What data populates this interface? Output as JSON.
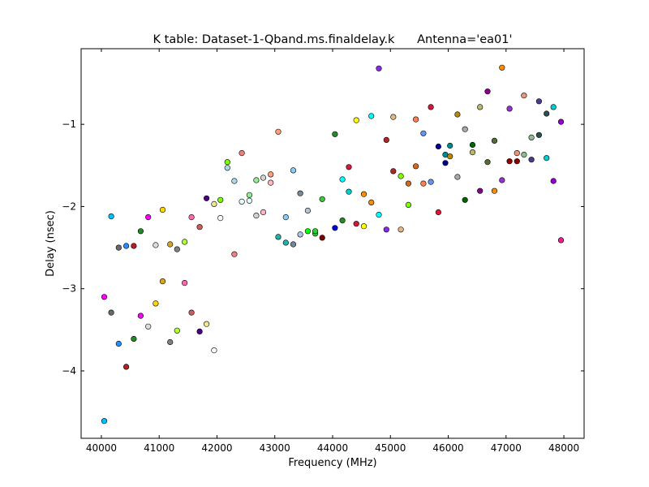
{
  "chart_data": {
    "type": "scatter",
    "title": "K table: Dataset-1-Qband.ms.finaldelay.k      Antenna='ea01'",
    "xlabel": "Frequency (MHz)",
    "ylabel": "Delay (nsec)",
    "xlim": [
      39650,
      48350
    ],
    "ylim": [
      -4.82,
      -0.08
    ],
    "x_ticks": [
      40000,
      41000,
      42000,
      43000,
      44000,
      45000,
      46000,
      47000,
      48000
    ],
    "y_ticks": [
      -4,
      -3,
      -2,
      -1
    ],
    "y_tick_labels": [
      "−4",
      "−3",
      "−2",
      "−1"
    ],
    "grid": false,
    "legend": "none",
    "marker": "circle",
    "points": [
      {
        "x": 40050,
        "y": -4.61,
        "color": "#00bfff"
      },
      {
        "x": 40050,
        "y": -3.1,
        "color": "#ff00ff"
      },
      {
        "x": 40170,
        "y": -2.12,
        "color": "#00bfff"
      },
      {
        "x": 40170,
        "y": -3.29,
        "color": "#696969"
      },
      {
        "x": 40300,
        "y": -2.5,
        "color": "#696969"
      },
      {
        "x": 40300,
        "y": -3.67,
        "color": "#1e90ff"
      },
      {
        "x": 40430,
        "y": -2.48,
        "color": "#1e90ff"
      },
      {
        "x": 40430,
        "y": -3.95,
        "color": "#b22222"
      },
      {
        "x": 40560,
        "y": -2.48,
        "color": "#b22222"
      },
      {
        "x": 40560,
        "y": -3.61,
        "color": "#228b22"
      },
      {
        "x": 40680,
        "y": -2.3,
        "color": "#228b22"
      },
      {
        "x": 40680,
        "y": -3.33,
        "color": "#ff00ff"
      },
      {
        "x": 40810,
        "y": -2.13,
        "color": "#ff00ff"
      },
      {
        "x": 40810,
        "y": -3.46,
        "color": "#dcdcdc"
      },
      {
        "x": 40940,
        "y": -2.47,
        "color": "#dcdcdc"
      },
      {
        "x": 40940,
        "y": -3.18,
        "color": "#ffd700"
      },
      {
        "x": 41060,
        "y": -2.04,
        "color": "#ffd700"
      },
      {
        "x": 41060,
        "y": -2.91,
        "color": "#daa520"
      },
      {
        "x": 41190,
        "y": -2.46,
        "color": "#daa520"
      },
      {
        "x": 41190,
        "y": -3.65,
        "color": "#808080"
      },
      {
        "x": 41310,
        "y": -2.52,
        "color": "#808080"
      },
      {
        "x": 41310,
        "y": -3.51,
        "color": "#adff2f"
      },
      {
        "x": 41440,
        "y": -2.43,
        "color": "#adff2f"
      },
      {
        "x": 41440,
        "y": -2.93,
        "color": "#ff69b4"
      },
      {
        "x": 41560,
        "y": -2.13,
        "color": "#ff69b4"
      },
      {
        "x": 41560,
        "y": -3.29,
        "color": "#cd5c5c"
      },
      {
        "x": 41700,
        "y": -2.25,
        "color": "#cd5c5c"
      },
      {
        "x": 41700,
        "y": -3.52,
        "color": "#4b0082"
      },
      {
        "x": 41820,
        "y": -1.9,
        "color": "#4b0082"
      },
      {
        "x": 41820,
        "y": -3.43,
        "color": "#f0e68c"
      },
      {
        "x": 41950,
        "y": -1.97,
        "color": "#f0e68c"
      },
      {
        "x": 41950,
        "y": -3.75,
        "color": "#f8f8ff"
      },
      {
        "x": 42060,
        "y": -2.14,
        "color": "#f8f8ff"
      },
      {
        "x": 42060,
        "y": -1.92,
        "color": "#7cfc00"
      },
      {
        "x": 42180,
        "y": -1.46,
        "color": "#7cfc00"
      },
      {
        "x": 42180,
        "y": -1.53,
        "color": "#add8e6"
      },
      {
        "x": 42300,
        "y": -1.69,
        "color": "#add8e6"
      },
      {
        "x": 42300,
        "y": -2.58,
        "color": "#f08080"
      },
      {
        "x": 42430,
        "y": -1.35,
        "color": "#f08080"
      },
      {
        "x": 42430,
        "y": -1.94,
        "color": "#e0ffff"
      },
      {
        "x": 42560,
        "y": -1.93,
        "color": "#e0ffff"
      },
      {
        "x": 42560,
        "y": -1.86,
        "color": "#90ee90"
      },
      {
        "x": 42680,
        "y": -1.68,
        "color": "#90ee90"
      },
      {
        "x": 42680,
        "y": -2.11,
        "color": "#d3d3d3"
      },
      {
        "x": 42800,
        "y": -1.65,
        "color": "#d3d3d3"
      },
      {
        "x": 42800,
        "y": -2.07,
        "color": "#ffb6c1"
      },
      {
        "x": 42930,
        "y": -1.71,
        "color": "#ffb6c1"
      },
      {
        "x": 42930,
        "y": -1.61,
        "color": "#ffa07a"
      },
      {
        "x": 43060,
        "y": -1.09,
        "color": "#ffa07a"
      },
      {
        "x": 43060,
        "y": -2.37,
        "color": "#20b2aa"
      },
      {
        "x": 43190,
        "y": -2.44,
        "color": "#20b2aa"
      },
      {
        "x": 43190,
        "y": -2.13,
        "color": "#87cefa"
      },
      {
        "x": 43320,
        "y": -1.56,
        "color": "#87cefa"
      },
      {
        "x": 43320,
        "y": -2.46,
        "color": "#778899"
      },
      {
        "x": 43440,
        "y": -1.84,
        "color": "#778899"
      },
      {
        "x": 43440,
        "y": -2.34,
        "color": "#b0c4de"
      },
      {
        "x": 43570,
        "y": -2.05,
        "color": "#b0c4de"
      },
      {
        "x": 43570,
        "y": -2.3,
        "color": "#00ff00"
      },
      {
        "x": 43700,
        "y": -2.33,
        "color": "#32cd32"
      },
      {
        "x": 43700,
        "y": -2.3,
        "color": "#32cd32"
      },
      {
        "x": 43820,
        "y": -2.38,
        "color": "#800000"
      },
      {
        "x": 43820,
        "y": -1.91,
        "color": "#32cd32"
      },
      {
        "x": 44040,
        "y": -2.26,
        "color": "#0000cd"
      },
      {
        "x": 44040,
        "y": -1.12,
        "color": "#228b22"
      },
      {
        "x": 44170,
        "y": -2.17,
        "color": "#228b22"
      },
      {
        "x": 44170,
        "y": -1.67,
        "color": "#00ffff"
      },
      {
        "x": 44280,
        "y": -1.82,
        "color": "#00ced1"
      },
      {
        "x": 44280,
        "y": -1.52,
        "color": "#dc143c"
      },
      {
        "x": 44410,
        "y": -2.21,
        "color": "#dc143c"
      },
      {
        "x": 44410,
        "y": -0.95,
        "color": "#ffff00"
      },
      {
        "x": 44540,
        "y": -2.24,
        "color": "#ffff00"
      },
      {
        "x": 44540,
        "y": -1.85,
        "color": "#ff8c00"
      },
      {
        "x": 44670,
        "y": -1.95,
        "color": "#ff8c00"
      },
      {
        "x": 44670,
        "y": -0.9,
        "color": "#00ffff"
      },
      {
        "x": 44800,
        "y": -2.1,
        "color": "#00ffff"
      },
      {
        "x": 44800,
        "y": -0.32,
        "color": "#8a2be2"
      },
      {
        "x": 44930,
        "y": -2.28,
        "color": "#8a2be2"
      },
      {
        "x": 44930,
        "y": -1.19,
        "color": "#a52a2a"
      },
      {
        "x": 45050,
        "y": -1.57,
        "color": "#a52a2a"
      },
      {
        "x": 45050,
        "y": -0.91,
        "color": "#deb887"
      },
      {
        "x": 45180,
        "y": -2.28,
        "color": "#deb887"
      },
      {
        "x": 45180,
        "y": -1.63,
        "color": "#7fff00"
      },
      {
        "x": 45310,
        "y": -1.98,
        "color": "#7fff00"
      },
      {
        "x": 45310,
        "y": -1.72,
        "color": "#d2691e"
      },
      {
        "x": 45440,
        "y": -1.51,
        "color": "#d2691e"
      },
      {
        "x": 45440,
        "y": -0.94,
        "color": "#ff7f50"
      },
      {
        "x": 45570,
        "y": -1.72,
        "color": "#ff7f50"
      },
      {
        "x": 45570,
        "y": -1.11,
        "color": "#6495ed"
      },
      {
        "x": 45700,
        "y": -1.7,
        "color": "#6495ed"
      },
      {
        "x": 45700,
        "y": -0.79,
        "color": "#dc143c"
      },
      {
        "x": 45830,
        "y": -2.07,
        "color": "#dc143c"
      },
      {
        "x": 45830,
        "y": -1.27,
        "color": "#00008b"
      },
      {
        "x": 45950,
        "y": -1.47,
        "color": "#00008b"
      },
      {
        "x": 45950,
        "y": -1.37,
        "color": "#008b8b"
      },
      {
        "x": 46030,
        "y": -1.26,
        "color": "#008b8b"
      },
      {
        "x": 46030,
        "y": -1.39,
        "color": "#b8860b"
      },
      {
        "x": 46160,
        "y": -0.88,
        "color": "#b8860b"
      },
      {
        "x": 46160,
        "y": -1.64,
        "color": "#a9a9a9"
      },
      {
        "x": 46290,
        "y": -1.06,
        "color": "#a9a9a9"
      },
      {
        "x": 46290,
        "y": -1.92,
        "color": "#006400"
      },
      {
        "x": 46420,
        "y": -1.25,
        "color": "#006400"
      },
      {
        "x": 46420,
        "y": -1.34,
        "color": "#bdb76b"
      },
      {
        "x": 46550,
        "y": -0.79,
        "color": "#bdb76b"
      },
      {
        "x": 46550,
        "y": -1.81,
        "color": "#8b008b"
      },
      {
        "x": 46680,
        "y": -0.6,
        "color": "#8b008b"
      },
      {
        "x": 46680,
        "y": -1.46,
        "color": "#556b2f"
      },
      {
        "x": 46800,
        "y": -1.2,
        "color": "#556b2f"
      },
      {
        "x": 46800,
        "y": -1.81,
        "color": "#ff8c00"
      },
      {
        "x": 46930,
        "y": -0.31,
        "color": "#ff8c00"
      },
      {
        "x": 46930,
        "y": -1.68,
        "color": "#9932cc"
      },
      {
        "x": 47060,
        "y": -0.81,
        "color": "#9932cc"
      },
      {
        "x": 47060,
        "y": -1.45,
        "color": "#8b0000"
      },
      {
        "x": 47190,
        "y": -1.45,
        "color": "#8b0000"
      },
      {
        "x": 47190,
        "y": -1.35,
        "color": "#e9967a"
      },
      {
        "x": 47310,
        "y": -0.65,
        "color": "#e9967a"
      },
      {
        "x": 47310,
        "y": -1.37,
        "color": "#8fbc8f"
      },
      {
        "x": 47440,
        "y": -1.16,
        "color": "#8fbc8f"
      },
      {
        "x": 47440,
        "y": -1.43,
        "color": "#483d8b"
      },
      {
        "x": 47570,
        "y": -0.72,
        "color": "#483d8b"
      },
      {
        "x": 47570,
        "y": -1.13,
        "color": "#2f4f4f"
      },
      {
        "x": 47700,
        "y": -0.87,
        "color": "#2f4f4f"
      },
      {
        "x": 47700,
        "y": -1.41,
        "color": "#00ced1"
      },
      {
        "x": 47820,
        "y": -0.79,
        "color": "#00ced1"
      },
      {
        "x": 47820,
        "y": -1.69,
        "color": "#9400d3"
      },
      {
        "x": 47950,
        "y": -0.97,
        "color": "#9400d3"
      },
      {
        "x": 47950,
        "y": -2.41,
        "color": "#ff1493"
      }
    ]
  }
}
